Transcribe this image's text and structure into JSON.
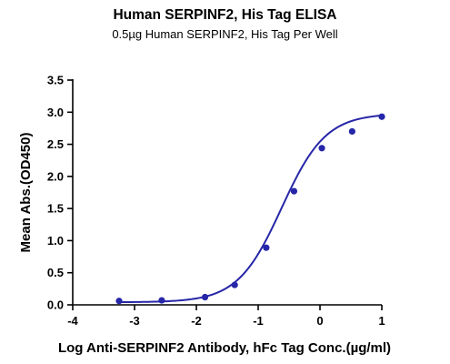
{
  "colors": {
    "series": "#2626a8",
    "axis": "#000000"
  },
  "chart_data": {
    "type": "scatter",
    "title": "Human SERPINF2, His Tag ELISA",
    "subtitle": "0.5µg Human SERPINF2, His Tag Per Well",
    "xlabel": "Log Anti-SERPINF2 Antibody, hFc Tag Conc.(µg/ml)",
    "ylabel": "Mean Abs.(OD450)",
    "xlim": [
      -4,
      1
    ],
    "ylim": [
      0.0,
      3.5
    ],
    "xticks": [
      "-4",
      "-3",
      "-2",
      "-1",
      "0",
      "1"
    ],
    "yticks": [
      "0.0",
      "0.5",
      "1.0",
      "1.5",
      "2.0",
      "2.5",
      "3.0",
      "3.5"
    ],
    "grid": false,
    "legend": "none",
    "fit": "sigmoidal (4PL) curve through points",
    "series": [
      {
        "x": [
          -3.25,
          -2.56,
          -1.86,
          -1.38,
          -0.87,
          -0.42,
          0.03,
          0.52,
          1.0
        ],
        "y": [
          0.06,
          0.07,
          0.12,
          0.31,
          0.89,
          1.77,
          2.44,
          2.7,
          2.93
        ]
      }
    ]
  }
}
